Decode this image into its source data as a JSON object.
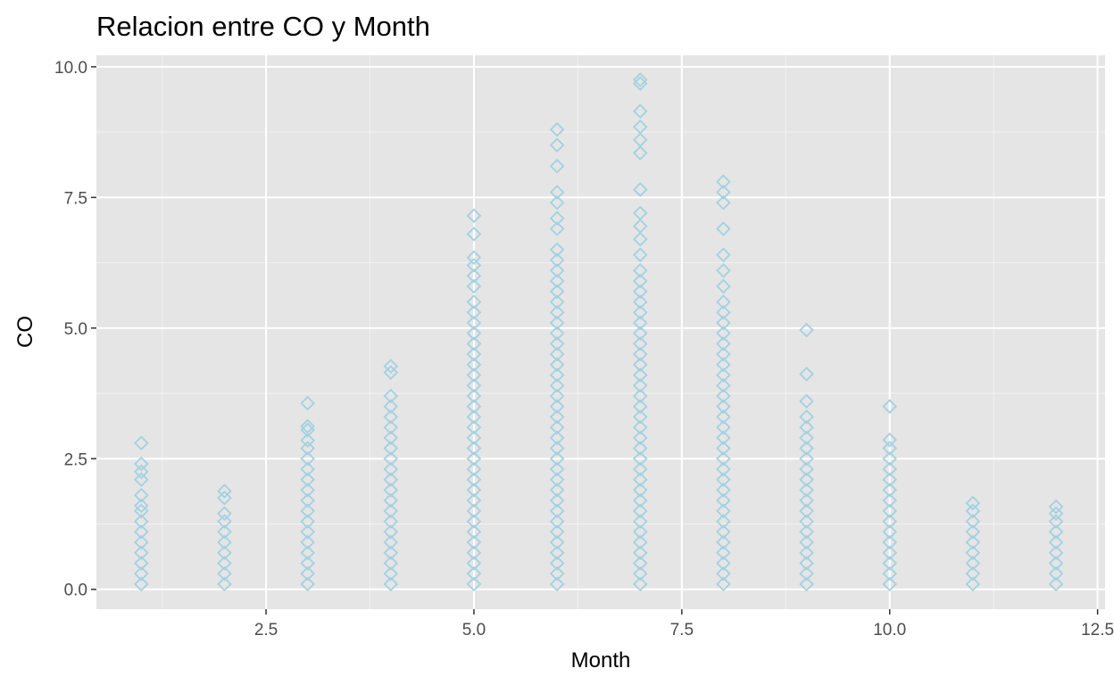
{
  "chart_data": {
    "type": "scatter",
    "title": "Relacion entre CO y Month",
    "x_label": "Month",
    "y_label": "CO",
    "color": "#a3d1e1",
    "marker": "diamond-open",
    "grid": true,
    "xlim": [
      0.46,
      12.59
    ],
    "ylim": [
      -0.38,
      10.22
    ],
    "xticks": [
      2.5,
      {
        "value": 5,
        "label": "5.0"
      },
      7.5,
      {
        "value": 10,
        "label": "10.0"
      },
      12.5
    ],
    "yticks": [
      {
        "value": 0,
        "label": "0.0"
      },
      2.5,
      {
        "value": 5,
        "label": "5.0"
      },
      7.5,
      {
        "value": 10,
        "label": "10.0"
      }
    ],
    "x": [
      1,
      1,
      1,
      1,
      1,
      1,
      1,
      1,
      1,
      1,
      1,
      1,
      1,
      1,
      2,
      2,
      2,
      2,
      2,
      2,
      2,
      2,
      2,
      2,
      3,
      3,
      3,
      3,
      3,
      3,
      3,
      3,
      3,
      3,
      3,
      3,
      3,
      3,
      3,
      3,
      3,
      3,
      4,
      4,
      4,
      4,
      4,
      4,
      4,
      4,
      4,
      4,
      4,
      4,
      4,
      4,
      4,
      4,
      4,
      4,
      4,
      4,
      4,
      5,
      5,
      5,
      5,
      5,
      5,
      5,
      5,
      5,
      5,
      5,
      5,
      5,
      5,
      5,
      5,
      5,
      5,
      5,
      5,
      5,
      5,
      5,
      5,
      5,
      5,
      5,
      5,
      5,
      5,
      5,
      5,
      5,
      5,
      6,
      6,
      6,
      6,
      6,
      6,
      6,
      6,
      6,
      6,
      6,
      6,
      6,
      6,
      6,
      6,
      6,
      6,
      6,
      6,
      6,
      6,
      6,
      6,
      6,
      6,
      6,
      6,
      6,
      6,
      6,
      6,
      6,
      6,
      6,
      6,
      6,
      6,
      6,
      6,
      7,
      7,
      7,
      7,
      7,
      7,
      7,
      7,
      7,
      7,
      7,
      7,
      7,
      7,
      7,
      7,
      7,
      7,
      7,
      7,
      7,
      7,
      7,
      7,
      7,
      7,
      7,
      7,
      7,
      7,
      7,
      7,
      7,
      7,
      7,
      7,
      7,
      7,
      7,
      7,
      7,
      7,
      8,
      8,
      8,
      8,
      8,
      8,
      8,
      8,
      8,
      8,
      8,
      8,
      8,
      8,
      8,
      8,
      8,
      8,
      8,
      8,
      8,
      8,
      8,
      8,
      8,
      8,
      8,
      8,
      8,
      8,
      8,
      8,
      8,
      8,
      8,
      9,
      9,
      9,
      9,
      9,
      9,
      9,
      9,
      9,
      9,
      9,
      9,
      9,
      9,
      9,
      9,
      9,
      9,
      9,
      9,
      10,
      10,
      10,
      10,
      10,
      10,
      10,
      10,
      10,
      10,
      10,
      10,
      10,
      10,
      10,
      10,
      11,
      11,
      11,
      11,
      11,
      11,
      11,
      11,
      11,
      12,
      12,
      12,
      12,
      12,
      12,
      12,
      12,
      12
    ],
    "values": [
      0.1,
      0.3,
      0.5,
      0.7,
      0.9,
      1.1,
      1.3,
      1.5,
      1.6,
      1.8,
      2.1,
      2.25,
      2.4,
      2.8,
      0.1,
      0.3,
      0.5,
      0.7,
      0.9,
      1.1,
      1.3,
      1.45,
      1.75,
      1.88,
      0.1,
      0.3,
      0.5,
      0.7,
      0.9,
      1.1,
      1.3,
      1.5,
      1.7,
      1.9,
      2.1,
      2.3,
      2.5,
      2.7,
      2.85,
      3.05,
      3.12,
      3.56,
      0.1,
      0.3,
      0.5,
      0.7,
      0.9,
      1.1,
      1.3,
      1.5,
      1.7,
      1.9,
      2.1,
      2.3,
      2.5,
      2.7,
      2.9,
      3.1,
      3.3,
      3.5,
      3.7,
      4.15,
      4.27,
      0.1,
      0.3,
      0.5,
      0.7,
      0.9,
      1.1,
      1.3,
      1.5,
      1.7,
      1.9,
      2.1,
      2.3,
      2.5,
      2.7,
      2.9,
      3.1,
      3.3,
      3.5,
      3.7,
      3.9,
      4.1,
      4.3,
      4.5,
      4.7,
      4.9,
      5.1,
      5.3,
      5.5,
      5.8,
      6.0,
      6.2,
      6.35,
      6.8,
      7.15,
      0.1,
      0.3,
      0.5,
      0.7,
      0.9,
      1.1,
      1.3,
      1.5,
      1.7,
      1.9,
      2.1,
      2.3,
      2.5,
      2.7,
      2.9,
      3.1,
      3.3,
      3.5,
      3.7,
      3.9,
      4.1,
      4.3,
      4.5,
      4.7,
      4.9,
      5.1,
      5.3,
      5.5,
      5.7,
      5.9,
      6.1,
      6.3,
      6.5,
      6.9,
      7.1,
      7.4,
      7.6,
      8.1,
      8.5,
      8.8,
      0.1,
      0.3,
      0.5,
      0.7,
      0.9,
      1.1,
      1.3,
      1.5,
      1.7,
      1.9,
      2.1,
      2.3,
      2.5,
      2.7,
      2.9,
      3.1,
      3.3,
      3.5,
      3.7,
      3.9,
      4.1,
      4.3,
      4.5,
      4.7,
      4.9,
      5.1,
      5.3,
      5.5,
      5.7,
      5.9,
      6.1,
      6.4,
      6.7,
      6.95,
      7.2,
      7.65,
      8.35,
      8.6,
      8.85,
      9.15,
      9.68,
      9.75,
      0.1,
      0.3,
      0.5,
      0.7,
      0.9,
      1.1,
      1.3,
      1.5,
      1.7,
      1.9,
      2.1,
      2.3,
      2.5,
      2.7,
      2.9,
      3.1,
      3.3,
      3.5,
      3.7,
      3.9,
      4.1,
      4.3,
      4.5,
      4.7,
      4.9,
      5.1,
      5.3,
      5.5,
      5.8,
      6.1,
      6.4,
      6.9,
      7.4,
      7.6,
      7.8,
      0.1,
      0.3,
      0.5,
      0.7,
      0.9,
      1.1,
      1.3,
      1.5,
      1.7,
      1.9,
      2.1,
      2.3,
      2.5,
      2.7,
      2.9,
      3.1,
      3.3,
      3.6,
      4.12,
      4.96,
      0.1,
      0.3,
      0.5,
      0.7,
      0.9,
      1.1,
      1.3,
      1.5,
      1.7,
      1.9,
      2.1,
      2.3,
      2.5,
      2.7,
      2.86,
      3.5,
      0.1,
      0.3,
      0.5,
      0.7,
      0.9,
      1.1,
      1.3,
      1.5,
      1.65,
      0.1,
      0.3,
      0.5,
      0.7,
      0.9,
      1.1,
      1.3,
      1.45,
      1.58
    ]
  }
}
